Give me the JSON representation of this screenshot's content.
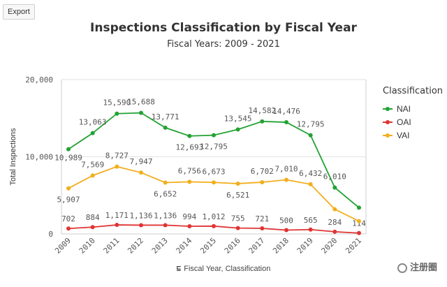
{
  "export_label": "Export",
  "footer_label": "Fiscal Year, Classification",
  "watermark_text": "注册圈",
  "chart_data": {
    "type": "line",
    "title": "Inspections Classification by Fiscal Year",
    "subtitle": "Fiscal Years: 2009 - 2021",
    "ylabel": "Total Inspections",
    "xlabel": "",
    "ylim": [
      0,
      20000
    ],
    "yticks": [
      "0",
      "10,000",
      "20,000"
    ],
    "x": [
      "2009",
      "2010",
      "2011",
      "2012",
      "2013",
      "2014",
      "2015",
      "2016",
      "2017",
      "2018",
      "2019",
      "2020",
      "2021"
    ],
    "legend_title": "Classification",
    "legend_position": "right",
    "grid": true,
    "series": [
      {
        "name": "NAI",
        "color": "#22a233",
        "values": [
          10989,
          13063,
          15590,
          15688,
          13771,
          12693,
          12795,
          13545,
          14582,
          14476,
          12795,
          6010,
          3400
        ],
        "labels": [
          "10,989",
          "13,063",
          "15,590",
          "15,688",
          "13,771",
          "12,693",
          "12,795",
          "13,545",
          "14,582",
          "14,476",
          "12,795",
          "6,010",
          ""
        ]
      },
      {
        "name": "OAI",
        "color": "#e03434",
        "values": [
          702,
          884,
          1171,
          1136,
          1136,
          994,
          1012,
          755,
          721,
          500,
          565,
          284,
          114
        ],
        "labels": [
          "702",
          "884",
          "1,171",
          "1,136",
          "1,136",
          "994",
          "1,012",
          "755",
          "721",
          "500",
          "565",
          "284",
          "114"
        ]
      },
      {
        "name": "VAI",
        "color": "#f2ae1d",
        "values": [
          5907,
          7569,
          8727,
          7947,
          6652,
          6756,
          6673,
          6521,
          6702,
          7010,
          6432,
          3200,
          1650
        ],
        "labels": [
          "5,907",
          "7,569",
          "8,727",
          "7,947",
          "6,652",
          "6,756",
          "6,673",
          "6,521",
          "6,702",
          "7,010",
          "6,432",
          "",
          ""
        ]
      }
    ]
  }
}
